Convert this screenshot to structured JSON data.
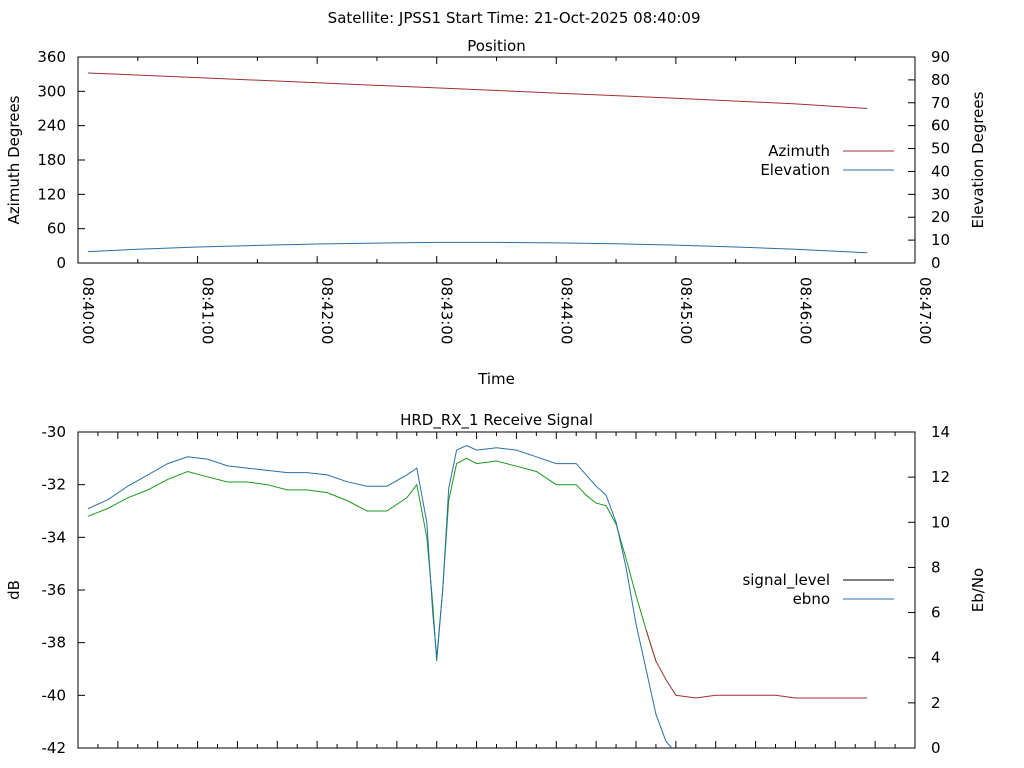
{
  "header": {
    "satellite_text": "Satellite: JPSS1",
    "start_time_text": "Start Time: 21-Oct-2025 08:40:09"
  },
  "chart_data": [
    {
      "type": "line",
      "title": "Position",
      "xlabel": "Time",
      "ylabel": "Azimuth Degrees",
      "y2label": "Elevation Degrees",
      "xlim": [
        0,
        420
      ],
      "xticks": [
        "08:40:00",
        "08:41:00",
        "08:42:00",
        "08:43:00",
        "08:44:00",
        "08:45:00",
        "08:46:00",
        "08:47:00"
      ],
      "ylim": [
        0,
        360
      ],
      "yticks": [
        0,
        60,
        120,
        180,
        240,
        300,
        360
      ],
      "y2lim": [
        0,
        90
      ],
      "y2ticks": [
        0,
        10,
        20,
        30,
        40,
        50,
        60,
        70,
        80,
        90
      ],
      "legend_position": "right-middle",
      "colors": {
        "azimuth": "#a03030",
        "elevation": "#2a6fa8"
      },
      "series": [
        {
          "name": "Azimuth",
          "axis": "y",
          "x": [
            5,
            60,
            120,
            180,
            240,
            300,
            360,
            396
          ],
          "values": [
            332,
            324,
            315,
            306,
            297,
            288,
            278,
            270
          ]
        },
        {
          "name": "Elevation",
          "axis": "y2",
          "x": [
            5,
            30,
            60,
            90,
            120,
            150,
            180,
            210,
            240,
            270,
            300,
            330,
            360,
            396
          ],
          "values": [
            5,
            6,
            7,
            7.7,
            8.3,
            8.7,
            9,
            9,
            8.8,
            8.4,
            7.8,
            7,
            6,
            4.5
          ]
        }
      ]
    },
    {
      "type": "line",
      "title": "HRD_RX_1 Receive Signal",
      "ylabel": "dB",
      "y2label": "Eb/No",
      "xlim": [
        0,
        420
      ],
      "xtick_step_minor": 10,
      "ylim": [
        -42,
        -30
      ],
      "yticks": [
        -30,
        -32,
        -34,
        -36,
        -38,
        -40,
        -42
      ],
      "y2lim": [
        0,
        14
      ],
      "y2ticks": [
        0,
        2,
        4,
        6,
        8,
        10,
        12,
        14
      ],
      "legend_position": "right-middle",
      "colors": {
        "signal_level": "#000000",
        "ebno": "#2a6fa8",
        "signal_low": "#a03030",
        "signal_green": "#1a9a1a"
      },
      "series": [
        {
          "name": "signal_level",
          "axis": "y",
          "x": [
            5,
            15,
            25,
            35,
            45,
            55,
            65,
            75,
            85,
            95,
            105,
            115,
            125,
            135,
            145,
            155,
            165,
            170,
            175,
            178,
            180,
            183,
            186,
            190,
            195,
            200,
            210,
            220,
            230,
            240,
            250,
            255,
            260,
            265,
            270,
            275,
            280,
            285,
            290,
            295,
            300,
            310,
            320,
            330,
            340,
            350,
            360,
            370,
            380,
            396
          ],
          "values": [
            -33.2,
            -32.9,
            -32.5,
            -32.2,
            -31.8,
            -31.5,
            -31.7,
            -31.9,
            -31.9,
            -32.0,
            -32.2,
            -32.2,
            -32.3,
            -32.6,
            -33.0,
            -33.0,
            -32.5,
            -32.0,
            -34.0,
            -36.5,
            -38.7,
            -36.0,
            -32.6,
            -31.2,
            -31.0,
            -31.2,
            -31.1,
            -31.3,
            -31.5,
            -32.0,
            -32.0,
            -32.4,
            -32.7,
            -32.8,
            -33.5,
            -34.8,
            -36.2,
            -37.5,
            -38.7,
            -39.4,
            -40.0,
            -40.1,
            -40.0,
            -40.0,
            -40.0,
            -40.0,
            -40.1,
            -40.1,
            -40.1,
            -40.1
          ]
        },
        {
          "name": "ebno",
          "axis": "y2",
          "x": [
            5,
            15,
            25,
            35,
            45,
            55,
            65,
            75,
            85,
            95,
            105,
            115,
            125,
            135,
            145,
            155,
            165,
            170,
            175,
            178,
            180,
            183,
            186,
            190,
            195,
            200,
            210,
            220,
            230,
            240,
            250,
            255,
            260,
            265,
            270,
            275,
            280,
            285,
            290,
            295,
            298
          ],
          "values": [
            10.6,
            11.0,
            11.6,
            12.1,
            12.6,
            12.9,
            12.8,
            12.5,
            12.4,
            12.3,
            12.2,
            12.2,
            12.1,
            11.8,
            11.6,
            11.6,
            12.1,
            12.4,
            10.0,
            6.0,
            4.0,
            7.0,
            11.5,
            13.2,
            13.4,
            13.2,
            13.3,
            13.2,
            12.9,
            12.6,
            12.6,
            12.1,
            11.6,
            11.2,
            10.0,
            8.0,
            5.5,
            3.5,
            1.5,
            0.3,
            0.0
          ]
        }
      ]
    }
  ]
}
